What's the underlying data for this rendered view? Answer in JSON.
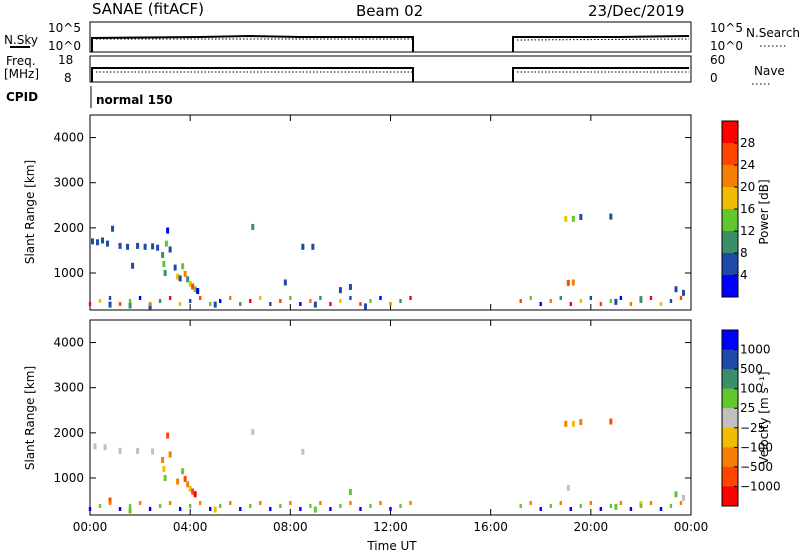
{
  "header": {
    "radar": "SANAE (fitACF)",
    "beam": "Beam 02",
    "date": "23/Dec/2019"
  },
  "top_panels": {
    "nsky_label": "N.Sky",
    "nsearch_label": "N.Search",
    "freq_label": "Freq.",
    "freq_unit": "[MHz]",
    "nave_label": "Nave",
    "cpid_label": "CPID",
    "cpid_value": "normal 150",
    "noise_ticks": [
      "10^5",
      "10^0"
    ],
    "freq_ticks": [
      "18",
      "8"
    ],
    "nave_ticks": [
      "60",
      "0"
    ]
  },
  "chart_data": [
    {
      "type": "heatmap",
      "name": "power-panel",
      "ylabel": "Slant Range [km]",
      "xlabel": "",
      "ylim": [
        180,
        4500
      ],
      "yticks": [
        "4000",
        "3000",
        "2000",
        "1000"
      ],
      "colorbar_label": "Power [dB]",
      "colorbar_ticks": [
        "28",
        "24",
        "20",
        "16",
        "12",
        "8",
        "4"
      ],
      "colorbar_colors": [
        "#ff0000",
        "#ff4400",
        "#f57f00",
        "#f2bd00",
        "#62c72c",
        "#3a8f6a",
        "#1f4aa8",
        "#0000ff"
      ],
      "points": [
        {
          "t": 0.1,
          "r": 1700,
          "c": "#1f4aa8"
        },
        {
          "t": 0.3,
          "r": 1680,
          "c": "#1f4aa8"
        },
        {
          "t": 0.5,
          "r": 1720,
          "c": "#1f4aa8"
        },
        {
          "t": 0.7,
          "r": 1650,
          "c": "#1f4aa8"
        },
        {
          "t": 0.9,
          "r": 1980,
          "c": "#1f4aa8"
        },
        {
          "t": 1.2,
          "r": 1600,
          "c": "#1f4aa8"
        },
        {
          "t": 1.5,
          "r": 1580,
          "c": "#1f4aa8"
        },
        {
          "t": 1.7,
          "r": 1160,
          "c": "#1f4aa8"
        },
        {
          "t": 1.9,
          "r": 1600,
          "c": "#1f4aa8"
        },
        {
          "t": 2.2,
          "r": 1580,
          "c": "#1f4aa8"
        },
        {
          "t": 2.5,
          "r": 1590,
          "c": "#1f4aa8"
        },
        {
          "t": 2.7,
          "r": 1560,
          "c": "#1f4aa8"
        },
        {
          "t": 2.9,
          "r": 1400,
          "c": "#3a8f6a"
        },
        {
          "t": 2.95,
          "r": 1200,
          "c": "#62c72c"
        },
        {
          "t": 3.0,
          "r": 1000,
          "c": "#3a8f6a"
        },
        {
          "t": 3.05,
          "r": 1650,
          "c": "#62c72c"
        },
        {
          "t": 3.1,
          "r": 1940,
          "c": "#0000ff"
        },
        {
          "t": 3.2,
          "r": 1520,
          "c": "#1f4aa8"
        },
        {
          "t": 3.4,
          "r": 1120,
          "c": "#1f4aa8"
        },
        {
          "t": 3.5,
          "r": 920,
          "c": "#f2bd00"
        },
        {
          "t": 3.6,
          "r": 880,
          "c": "#1f4aa8"
        },
        {
          "t": 3.7,
          "r": 1150,
          "c": "#62c72c"
        },
        {
          "t": 3.8,
          "r": 980,
          "c": "#f57f00"
        },
        {
          "t": 3.9,
          "r": 860,
          "c": "#3a8f6a"
        },
        {
          "t": 4.0,
          "r": 760,
          "c": "#f2bd00"
        },
        {
          "t": 4.1,
          "r": 700,
          "c": "#ff4400"
        },
        {
          "t": 4.2,
          "r": 640,
          "c": "#62c72c"
        },
        {
          "t": 4.3,
          "r": 600,
          "c": "#0000ff"
        },
        {
          "t": 0.8,
          "r": 300,
          "c": "#1f4aa8"
        },
        {
          "t": 1.6,
          "r": 280,
          "c": "#3a8f6a"
        },
        {
          "t": 2.4,
          "r": 260,
          "c": "#1f4aa8"
        },
        {
          "t": 5.0,
          "r": 300,
          "c": "#1f4aa8"
        },
        {
          "t": 6.5,
          "r": 2020,
          "c": "#3a8f6a"
        },
        {
          "t": 7.8,
          "r": 790,
          "c": "#1f4aa8"
        },
        {
          "t": 8.5,
          "r": 1580,
          "c": "#1f4aa8"
        },
        {
          "t": 8.9,
          "r": 1580,
          "c": "#1f4aa8"
        },
        {
          "t": 10.0,
          "r": 620,
          "c": "#1f4aa8"
        },
        {
          "t": 10.4,
          "r": 690,
          "c": "#1f4aa8"
        },
        {
          "t": 9.0,
          "r": 300,
          "c": "#1f4aa8"
        },
        {
          "t": 11.0,
          "r": 260,
          "c": "#1f4aa8"
        },
        {
          "t": 19.0,
          "r": 2200,
          "c": "#f2bd00"
        },
        {
          "t": 19.3,
          "r": 2200,
          "c": "#62c72c"
        },
        {
          "t": 19.6,
          "r": 2240,
          "c": "#1f4aa8"
        },
        {
          "t": 20.8,
          "r": 2250,
          "c": "#1f4aa8"
        },
        {
          "t": 19.1,
          "r": 780,
          "c": "#ff4400"
        },
        {
          "t": 19.3,
          "r": 790,
          "c": "#f57f00"
        },
        {
          "t": 21.0,
          "r": 360,
          "c": "#1f4aa8"
        },
        {
          "t": 22.0,
          "r": 420,
          "c": "#3a8f6a"
        },
        {
          "t": 23.4,
          "r": 640,
          "c": "#1f4aa8"
        },
        {
          "t": 23.7,
          "r": 560,
          "c": "#1f4aa8"
        }
      ]
    },
    {
      "type": "heatmap",
      "name": "velocity-panel",
      "ylabel": "Slant Range [km]",
      "xlabel": "Time UT",
      "ylim": [
        180,
        4500
      ],
      "yticks": [
        "4000",
        "3000",
        "2000",
        "1000"
      ],
      "xticks": [
        "00:00",
        "04:00",
        "08:00",
        "12:00",
        "16:00",
        "20:00",
        "00:00"
      ],
      "colorbar_label": "Velocity [m s⁻¹]",
      "colorbar_ticks": [
        "1000",
        "500",
        "100",
        "25",
        "−25",
        "−100",
        "−500",
        "−1000"
      ],
      "colorbar_colors": [
        "#0000ff",
        "#1f4aa8",
        "#3a8f6a",
        "#62c72c",
        "#c0c0c0",
        "#f2bd00",
        "#f57f00",
        "#ff4400",
        "#ff0000"
      ],
      "points": [
        {
          "t": 0.2,
          "r": 1700,
          "c": "#c0c0c0"
        },
        {
          "t": 0.6,
          "r": 1680,
          "c": "#c0c0c0"
        },
        {
          "t": 1.2,
          "r": 1600,
          "c": "#c0c0c0"
        },
        {
          "t": 1.9,
          "r": 1600,
          "c": "#c0c0c0"
        },
        {
          "t": 2.5,
          "r": 1590,
          "c": "#c0c0c0"
        },
        {
          "t": 2.9,
          "r": 1400,
          "c": "#f57f00"
        },
        {
          "t": 2.95,
          "r": 1200,
          "c": "#f2bd00"
        },
        {
          "t": 3.0,
          "r": 1000,
          "c": "#62c72c"
        },
        {
          "t": 3.1,
          "r": 1940,
          "c": "#ff4400"
        },
        {
          "t": 3.2,
          "r": 1520,
          "c": "#f57f00"
        },
        {
          "t": 3.5,
          "r": 920,
          "c": "#f57f00"
        },
        {
          "t": 3.7,
          "r": 1150,
          "c": "#62c72c"
        },
        {
          "t": 3.8,
          "r": 980,
          "c": "#ff4400"
        },
        {
          "t": 3.9,
          "r": 860,
          "c": "#f57f00"
        },
        {
          "t": 4.0,
          "r": 760,
          "c": "#f2bd00"
        },
        {
          "t": 4.1,
          "r": 700,
          "c": "#ff4400"
        },
        {
          "t": 4.2,
          "r": 640,
          "c": "#ff0000"
        },
        {
          "t": 0.8,
          "r": 500,
          "c": "#ff4400"
        },
        {
          "t": 1.6,
          "r": 280,
          "c": "#62c72c"
        },
        {
          "t": 5.0,
          "r": 300,
          "c": "#f2bd00"
        },
        {
          "t": 6.5,
          "r": 2020,
          "c": "#c0c0c0"
        },
        {
          "t": 8.5,
          "r": 1580,
          "c": "#c0c0c0"
        },
        {
          "t": 10.4,
          "r": 690,
          "c": "#62c72c"
        },
        {
          "t": 9.0,
          "r": 300,
          "c": "#62c72c"
        },
        {
          "t": 19.0,
          "r": 2200,
          "c": "#f57f00"
        },
        {
          "t": 19.3,
          "r": 2200,
          "c": "#f2bd00"
        },
        {
          "t": 19.6,
          "r": 2240,
          "c": "#f57f00"
        },
        {
          "t": 20.8,
          "r": 2250,
          "c": "#ff4400"
        },
        {
          "t": 19.1,
          "r": 780,
          "c": "#c0c0c0"
        },
        {
          "t": 21.0,
          "r": 360,
          "c": "#62c72c"
        },
        {
          "t": 22.0,
          "r": 420,
          "c": "#f2bd00"
        },
        {
          "t": 23.4,
          "r": 640,
          "c": "#62c72c"
        },
        {
          "t": 23.7,
          "r": 560,
          "c": "#c0c0c0"
        }
      ]
    }
  ]
}
